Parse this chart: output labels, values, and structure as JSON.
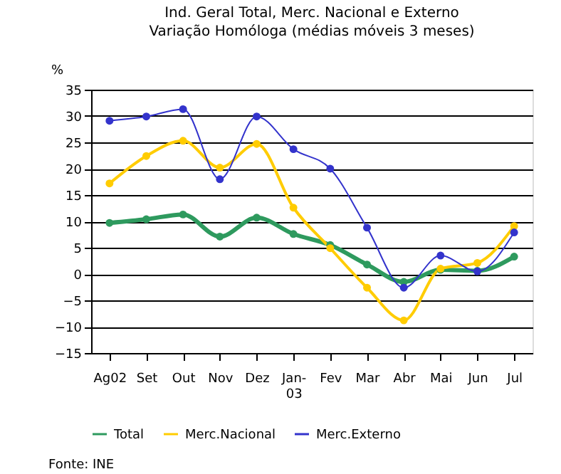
{
  "chart_data": {
    "type": "line",
    "title": "Ind. Geral Total, Merc. Nacional e Externo",
    "subtitle": "Variação Homóloga (médias móveis 3 meses)",
    "ylabel": "%",
    "categories": [
      "Ag02",
      "Set",
      "Out",
      "Nov",
      "Dez",
      "Jan-\n03",
      "Fev",
      "Mar",
      "Abr",
      "Mai",
      "Jun",
      "Jul"
    ],
    "series": [
      {
        "name": "Total",
        "color": "#2e9a5e",
        "values": [
          9.7,
          10.4,
          11.3,
          7.1,
          10.7,
          7.6,
          5.5,
          1.8,
          -1.5,
          0.8,
          0.6,
          3.3
        ]
      },
      {
        "name": "Merc.Nacional",
        "color": "#ffcc00",
        "values": [
          17.2,
          22.4,
          25.3,
          20.2,
          24.7,
          12.6,
          4.9,
          -2.6,
          -8.8,
          1.0,
          2.1,
          9.1
        ]
      },
      {
        "name": "Merc.Externo",
        "color": "#3333cc",
        "values": [
          29.1,
          29.9,
          31.3,
          18.0,
          29.9,
          23.7,
          20.0,
          8.8,
          -2.6,
          3.5,
          0.5,
          7.9
        ]
      }
    ],
    "ylim": [
      -15,
      35
    ],
    "yticks": [
      -15,
      -10,
      -5,
      0,
      5,
      10,
      15,
      20,
      25,
      30,
      35
    ],
    "grid": "y",
    "legend": "bottom",
    "marker": "circle",
    "line_style": "solid",
    "annotations": [
      "Fonte: INE"
    ]
  }
}
